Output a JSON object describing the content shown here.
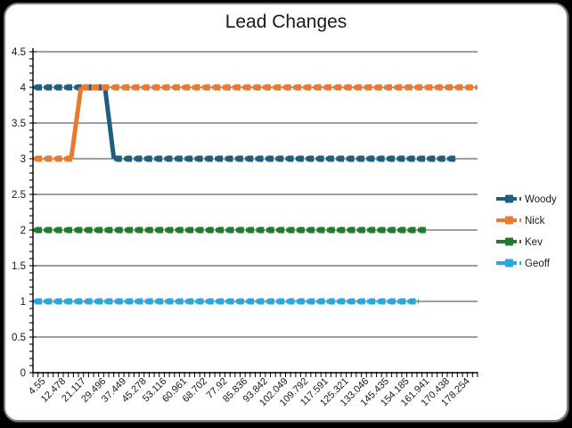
{
  "window": {
    "background_color": "#000000",
    "chart_background_color": "#ffffff",
    "chart_border_color": "#7f7f7f"
  },
  "chart_data": {
    "type": "line",
    "title": "Lead Changes",
    "xlabel": "",
    "ylabel": "",
    "ylim": [
      0,
      4.5
    ],
    "y_ticks": [
      "4.5",
      "4",
      "3.5",
      "3",
      "2.5",
      "2",
      "1.5",
      "1",
      "0.5",
      "0"
    ],
    "grid": true,
    "grid_color": "#3f3f3f",
    "axis_color": "#000000",
    "text_color": "#1a1a1a",
    "legend_position": "right",
    "line_style": "thick-dashed-with-square-markers",
    "categories": [
      "4.55",
      "12.478",
      "21.117",
      "29.496",
      "37.449",
      "45.278",
      "53.116",
      "60.961",
      "68.702",
      "77.92",
      "85.836",
      "93.842",
      "102.049",
      "109.792",
      "117.591",
      "125.321",
      "133.046",
      "145.435",
      "154.185",
      "161.941",
      "170.438",
      "178.254"
    ],
    "series": [
      {
        "name": "Woody",
        "color": "#1E5F80",
        "values": [
          4,
          4,
          4,
          4,
          3,
          3,
          3,
          3,
          3,
          3,
          3,
          3,
          3,
          3,
          3,
          3,
          3,
          3,
          3,
          3,
          3,
          null
        ],
        "path": [
          [
            0.002,
            4
          ],
          [
            0.162,
            4
          ],
          [
            0.182,
            3
          ],
          [
            0.952,
            3
          ]
        ]
      },
      {
        "name": "Nick",
        "color": "#EB7A2E",
        "values": [
          3,
          3,
          4,
          4,
          4,
          4,
          4,
          4,
          4,
          4,
          4,
          4,
          4,
          4,
          4,
          4,
          4,
          4,
          4,
          4,
          4,
          4
        ],
        "path": [
          [
            0.002,
            3
          ],
          [
            0.086,
            3
          ],
          [
            0.108,
            4
          ],
          [
            1.0,
            4
          ]
        ]
      },
      {
        "name": "Kev",
        "color": "#217B2D",
        "values": [
          2,
          2,
          2,
          2,
          2,
          2,
          2,
          2,
          2,
          2,
          2,
          2,
          2,
          2,
          2,
          2,
          2,
          2,
          2,
          2,
          null,
          null
        ],
        "path": [
          [
            0.002,
            2
          ],
          [
            0.886,
            2
          ]
        ]
      },
      {
        "name": "Geoff",
        "color": "#2BA7DF",
        "values": [
          1,
          1,
          1,
          1,
          1,
          1,
          1,
          1,
          1,
          1,
          1,
          1,
          1,
          1,
          1,
          1,
          1,
          1,
          1,
          null,
          null,
          null
        ],
        "path": [
          [
            0.002,
            1
          ],
          [
            0.868,
            1
          ]
        ]
      }
    ]
  }
}
